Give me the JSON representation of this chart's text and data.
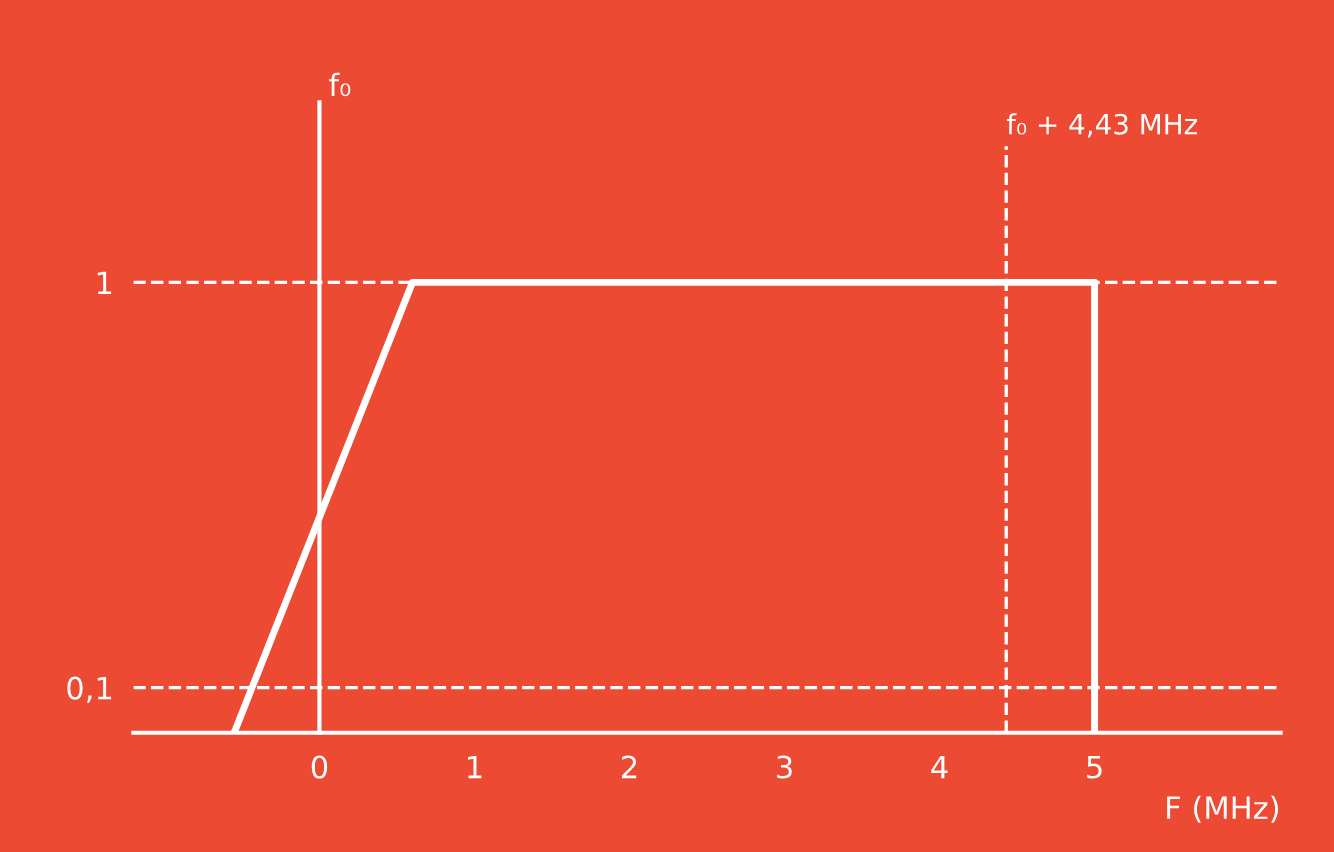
{
  "chart_data": {
    "type": "line",
    "xlabel": "F (MHz)",
    "ylabel": "f₀",
    "series": [
      {
        "color": "#ffffff",
        "x": [
          -0.55,
          0.6,
          5,
          5
        ],
        "values": [
          0,
          1,
          1,
          0
        ]
      }
    ],
    "xlim": [
      -1.2,
      6.2
    ],
    "ylim": [
      0,
      1.4
    ],
    "xticks": [
      0,
      1,
      2,
      3,
      4,
      5
    ],
    "yticks": [
      {
        "value": 0.1,
        "label": "0,1"
      },
      {
        "value": 1,
        "label": "1"
      }
    ],
    "ref_lines": [
      {
        "axis": "y",
        "value": 1,
        "color": "#ffffff",
        "line_style": "dashed"
      },
      {
        "axis": "y",
        "value": 0.1,
        "color": "#ffffff",
        "line_style": "dashed"
      },
      {
        "axis": "x",
        "value": 4.43,
        "label": "f₀ + 4,43 MHz",
        "color": "#ffffff",
        "line_style": "dashed"
      }
    ],
    "grid": false,
    "marker": "none",
    "line_style": "solid"
  }
}
